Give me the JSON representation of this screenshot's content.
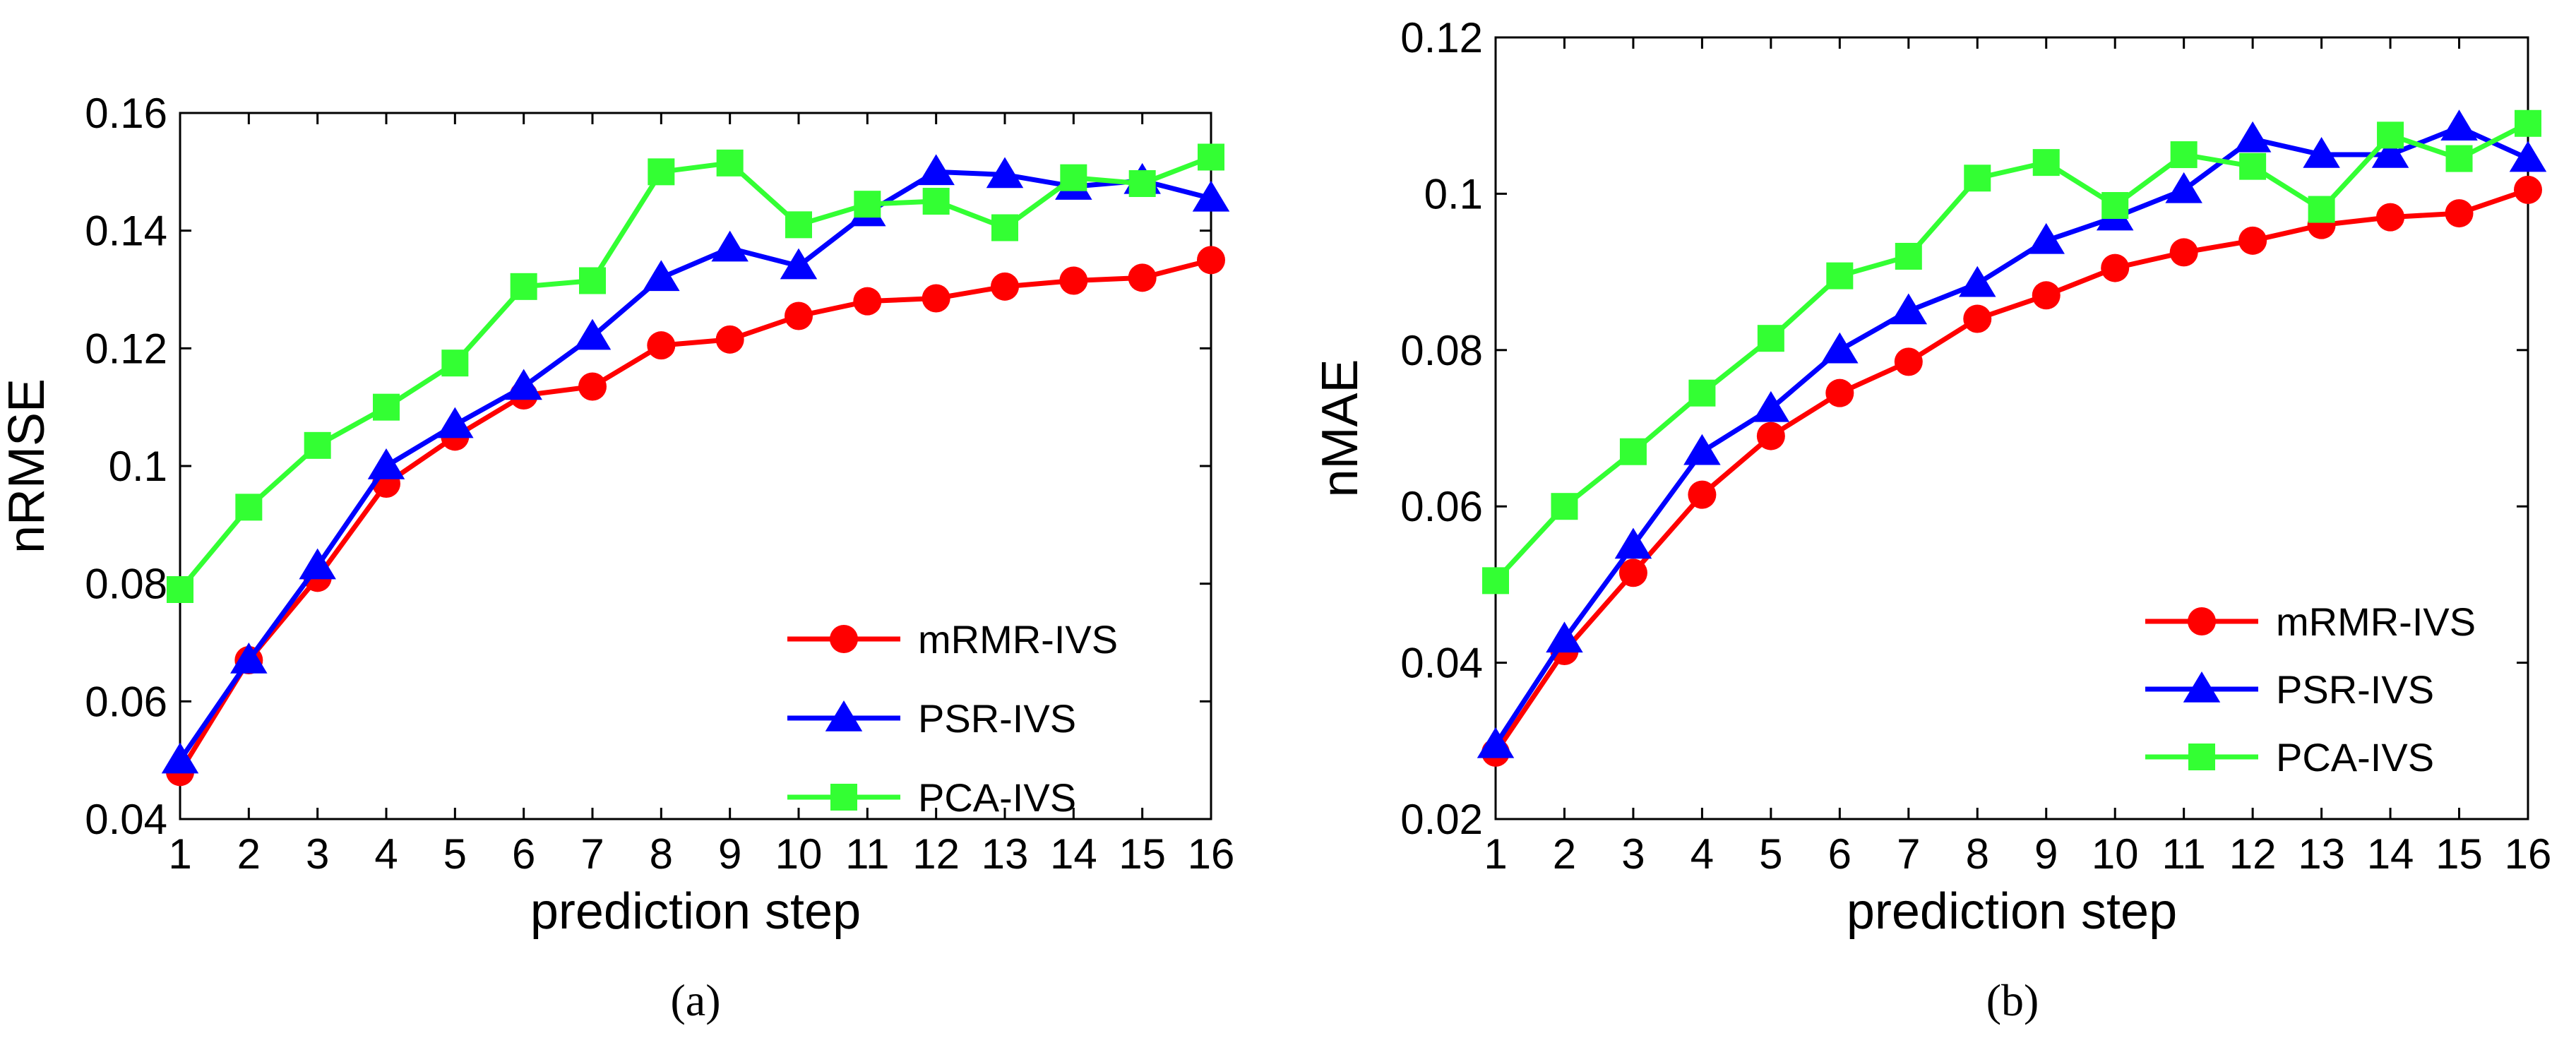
{
  "chart_data": [
    {
      "type": "line",
      "panel": "a",
      "caption": "(a)",
      "xlabel": "prediction step",
      "ylabel": "nRMSE",
      "x": [
        1,
        2,
        3,
        4,
        5,
        6,
        7,
        8,
        9,
        10,
        11,
        12,
        13,
        14,
        15,
        16
      ],
      "xlim": [
        1,
        16
      ],
      "ylim": [
        0.04,
        0.16
      ],
      "x_ticks": [
        "1",
        "2",
        "3",
        "4",
        "5",
        "6",
        "7",
        "8",
        "9",
        "10",
        "11",
        "12",
        "13",
        "14",
        "15",
        "16"
      ],
      "y_ticks": [
        "0.04",
        "0.06",
        "0.08",
        "0.1",
        "0.12",
        "0.14",
        "0.16"
      ],
      "grid": false,
      "legend_position": "bottom-right",
      "series": [
        {
          "name": "mRMR-IVS",
          "color": "#ff0000",
          "marker": "circle",
          "values": [
            0.048,
            0.067,
            0.081,
            0.097,
            0.105,
            0.112,
            0.1135,
            0.1205,
            0.1215,
            0.1255,
            0.128,
            0.1285,
            0.1305,
            0.1315,
            0.132,
            0.135
          ]
        },
        {
          "name": "PSR-IVS",
          "color": "#0000ff",
          "marker": "triangle",
          "values": [
            0.05,
            0.067,
            0.083,
            0.1,
            0.107,
            0.1135,
            0.122,
            0.132,
            0.137,
            0.134,
            0.143,
            0.15,
            0.1495,
            0.1475,
            0.1485,
            0.1455
          ]
        },
        {
          "name": "PCA-IVS",
          "color": "#33ff33",
          "marker": "square",
          "values": [
            0.079,
            0.093,
            0.1035,
            0.11,
            0.1175,
            0.1305,
            0.1315,
            0.15,
            0.1515,
            0.141,
            0.1445,
            0.145,
            0.1405,
            0.149,
            0.148,
            0.1525
          ]
        }
      ]
    },
    {
      "type": "line",
      "panel": "b",
      "caption": "(b)",
      "xlabel": "prediction step",
      "ylabel": "nMAE",
      "x": [
        1,
        2,
        3,
        4,
        5,
        6,
        7,
        8,
        9,
        10,
        11,
        12,
        13,
        14,
        15,
        16
      ],
      "xlim": [
        1,
        16
      ],
      "ylim": [
        0.02,
        0.12
      ],
      "x_ticks": [
        "1",
        "2",
        "3",
        "4",
        "5",
        "6",
        "7",
        "8",
        "9",
        "10",
        "11",
        "12",
        "13",
        "14",
        "15",
        "16"
      ],
      "y_ticks": [
        "0.02",
        "0.04",
        "0.06",
        "0.08",
        "0.1",
        "0.12"
      ],
      "grid": false,
      "legend_position": "bottom-right",
      "series": [
        {
          "name": "mRMR-IVS",
          "color": "#ff0000",
          "marker": "circle",
          "values": [
            0.0285,
            0.0415,
            0.0515,
            0.0615,
            0.069,
            0.0745,
            0.0785,
            0.084,
            0.087,
            0.0905,
            0.0925,
            0.094,
            0.096,
            0.097,
            0.0975,
            0.1005
          ]
        },
        {
          "name": "PSR-IVS",
          "color": "#0000ff",
          "marker": "triangle",
          "values": [
            0.0295,
            0.043,
            0.055,
            0.067,
            0.0725,
            0.08,
            0.085,
            0.0885,
            0.094,
            0.097,
            0.1005,
            0.107,
            0.105,
            0.105,
            0.1085,
            0.1045
          ]
        },
        {
          "name": "PCA-IVS",
          "color": "#33ff33",
          "marker": "square",
          "values": [
            0.0505,
            0.06,
            0.067,
            0.0745,
            0.0815,
            0.0895,
            0.092,
            0.102,
            0.104,
            0.0985,
            0.105,
            0.1035,
            0.098,
            0.1075,
            0.1045,
            0.109
          ]
        }
      ]
    }
  ]
}
